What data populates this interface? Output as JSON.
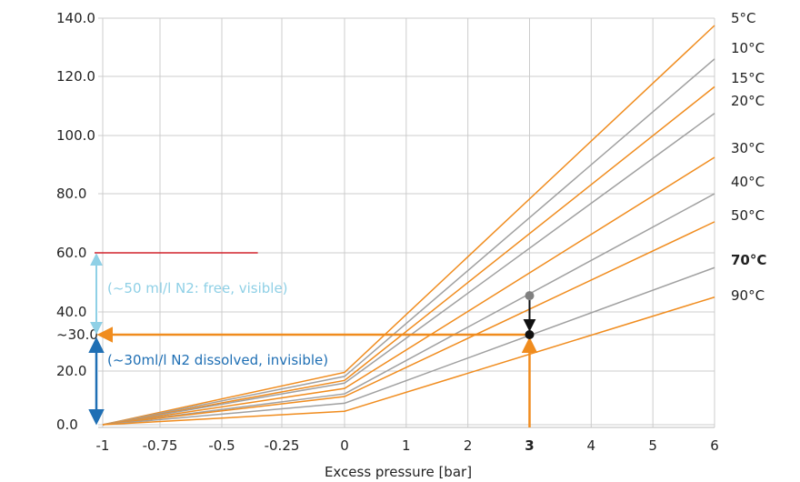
{
  "chart_data": {
    "type": "line",
    "xlabel": "Excess pressure [bar]",
    "ylabel": "",
    "x_ticks": [
      "-1",
      "-0.75",
      "-0.5",
      "-0.25",
      "0",
      "1",
      "2",
      "3",
      "4",
      "5",
      "6"
    ],
    "y_ticks": [
      "0.0",
      "20.0",
      "~30.0",
      "40.0",
      "60.0",
      "80.0",
      "100.0",
      "120.0",
      "140.0"
    ],
    "x_tick_values": [
      -1,
      -0.75,
      -0.5,
      -0.25,
      0,
      1,
      2,
      3,
      4,
      5,
      6
    ],
    "y_tick_values": [
      0,
      20,
      30,
      40,
      60,
      80,
      100,
      120,
      140
    ],
    "xlim": [
      -1.1,
      6
    ],
    "ylim": [
      0,
      140
    ],
    "highlight_x_tick": "3",
    "grid": true,
    "series": [
      {
        "name": "5°C",
        "color": "#f08c1e",
        "label_color": "#222222",
        "bold": false,
        "points": [
          [
            -1,
            0
          ],
          [
            0,
            19.5
          ],
          [
            6,
            137.5
          ]
        ]
      },
      {
        "name": "10°C",
        "color": "#a0a0a0",
        "label_color": "#222222",
        "bold": false,
        "points": [
          [
            -1,
            0
          ],
          [
            0,
            18
          ],
          [
            6,
            126
          ]
        ]
      },
      {
        "name": "15°C",
        "color": "#f08c1e",
        "label_color": "#222222",
        "bold": false,
        "points": [
          [
            -1,
            0
          ],
          [
            0,
            16.5
          ],
          [
            6,
            116.5
          ]
        ]
      },
      {
        "name": "20°C",
        "color": "#a0a0a0",
        "label_color": "#222222",
        "bold": false,
        "points": [
          [
            -1,
            0
          ],
          [
            0,
            15.5
          ],
          [
            6,
            107.5
          ]
        ]
      },
      {
        "name": "30°C",
        "color": "#f08c1e",
        "label_color": "#222222",
        "bold": false,
        "points": [
          [
            -1,
            0
          ],
          [
            0,
            13.5
          ],
          [
            6,
            92.5
          ]
        ]
      },
      {
        "name": "40°C",
        "color": "#a0a0a0",
        "label_color": "#222222",
        "bold": false,
        "points": [
          [
            -1,
            0
          ],
          [
            0,
            11.5
          ],
          [
            6,
            80
          ]
        ]
      },
      {
        "name": "50°C",
        "color": "#f08c1e",
        "label_color": "#222222",
        "bold": false,
        "points": [
          [
            -1,
            0
          ],
          [
            0,
            10.5
          ],
          [
            6,
            70.5
          ]
        ]
      },
      {
        "name": "70°C",
        "color": "#a0a0a0",
        "label_color": "#e2001a",
        "bold": true,
        "points": [
          [
            -1,
            0
          ],
          [
            0,
            8
          ],
          [
            6,
            55
          ]
        ]
      },
      {
        "name": "90°C",
        "color": "#f08c1e",
        "label_color": "#222222",
        "bold": false,
        "points": [
          [
            -1,
            0
          ],
          [
            0,
            5
          ],
          [
            6,
            45
          ]
        ]
      }
    ],
    "annotations": {
      "free_label": "(~50 ml/l N2: free, visible)",
      "free_color": "#8fd0e6",
      "dissolved_label": "(~30ml/l N2 dissolved, invisible)",
      "dissolved_color": "#1f6fb4",
      "limit_line": {
        "x_from": -1.1,
        "x_to": -0.35,
        "y": 60,
        "color": "#d0202a"
      },
      "reference_y": 30,
      "reference_x": 3,
      "reference_color": "#f08c1e",
      "grey_point": {
        "x": 3,
        "y": 45.5,
        "color": "#808080"
      },
      "black_point": {
        "x": 3,
        "y": 30,
        "color": "#111111"
      }
    }
  }
}
